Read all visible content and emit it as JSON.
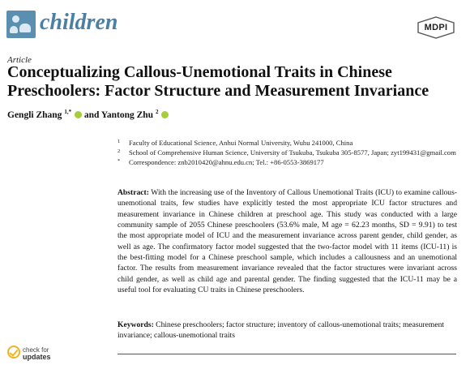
{
  "header": {
    "journal_name": "children",
    "publisher_logo": "MDPI",
    "journal_logo_icon": "children-journal-logo-icon"
  },
  "article": {
    "type": "Article",
    "title": "Conceptualizing Callous-Unemotional Traits in Chinese Preschoolers: Factor Structure and Measurement Invariance",
    "authors": [
      {
        "name": "Gengli Zhang",
        "sup": "1,*"
      },
      {
        "name": "Yantong Zhu",
        "sup": "2"
      }
    ],
    "author_conjunction": "and",
    "affiliations": [
      {
        "marker": "1",
        "text": "Faculty of Educational Science, Anhui Normal University, Wuhu 241000, China"
      },
      {
        "marker": "2",
        "text": "School of Comprehensive Human Science, University of Tsukuba, Tsukuba 305-8577, Japan; zyt199431@gmail.com"
      },
      {
        "marker": "*",
        "text": "Correspondence: znb2010420@ahnu.edu.cn; Tel.: +86-0553-3869177"
      }
    ],
    "abstract_label": "Abstract:",
    "abstract_text": "With the increasing use of the Inventory of Callous Unemotional Traits (ICU) to examine callous-unemotional traits, few studies have explicitly tested the most appropriate ICU factor structures and measurement invariance in Chinese children at preschool age. This study was conducted with a large community sample of 2055 Chinese preschoolers (53.6% male, M age = 62.23 months, SD = 9.91) to test the most appropriate model of ICU and the measurement invariance across parent gender, child gender, as well as age. The confirmatory factor model suggested that the two-factor model with 11 items (ICU-11) is the best-fitting model for a Chinese preschool sample, which includes a callousness and an unemotional factor. The results from measurement invariance revealed that the factor structures were invariant across child gender, as well as child age and parental gender. The finding suggested that the ICU-11 may be a useful tool for evaluating CU traits in Chinese preschoolers.",
    "keywords_label": "Keywords:",
    "keywords_text": "Chinese preschoolers; factor structure; inventory of callous-unemotional traits; measurement invariance; callous-unemotional traits"
  },
  "badges": {
    "check_line1": "check for",
    "check_line2": "updates"
  },
  "colors": {
    "journal_blue": "#4a7fa6",
    "orcid_green": "#a6ce39",
    "check_yellow": "#f0b323"
  }
}
